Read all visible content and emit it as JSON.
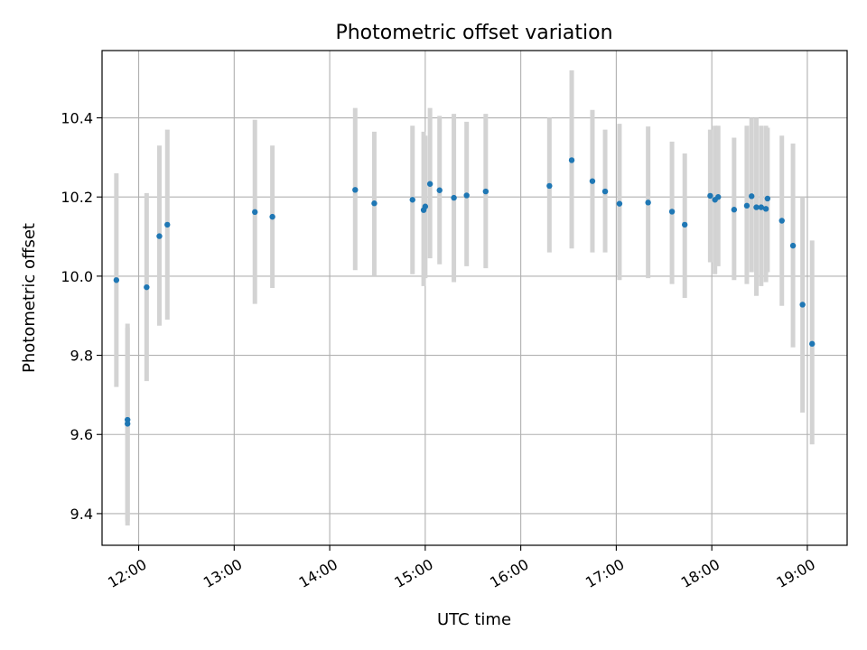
{
  "chart_data": {
    "type": "scatter",
    "title": "Photometric offset variation",
    "xlabel": "UTC time",
    "ylabel": "Photometric offset",
    "x_tick_labels": [
      "12:00",
      "13:00",
      "14:00",
      "15:00",
      "16:00",
      "17:00",
      "18:00",
      "19:00"
    ],
    "x_tick_values": [
      "12:00",
      "13:00",
      "14:00",
      "15:00",
      "16:00",
      "17:00",
      "18:00",
      "19:00"
    ],
    "y_tick_values": [
      9.4,
      9.6,
      9.8,
      10.0,
      10.2,
      10.4
    ],
    "y_tick_labels": [
      "9.4",
      "9.6",
      "9.8",
      "10.0",
      "10.2",
      "10.4"
    ],
    "xlim": [
      "11:37",
      "19:25"
    ],
    "ylim": [
      9.32,
      10.57
    ],
    "grid": true,
    "marker_color": "#1f77b4",
    "errorbar_color": "#d3d3d3",
    "points": [
      {
        "x": "11:46",
        "y": 9.99,
        "ylow": 9.72,
        "yhigh": 10.26
      },
      {
        "x": "11:53",
        "y": 9.637,
        "ylow": 9.37,
        "yhigh": 9.88
      },
      {
        "x": "11:53",
        "y": 9.627,
        "ylow": 9.38,
        "yhigh": 9.87
      },
      {
        "x": "12:05",
        "y": 9.972,
        "ylow": 9.735,
        "yhigh": 10.21
      },
      {
        "x": "12:13",
        "y": 10.101,
        "ylow": 9.875,
        "yhigh": 10.33
      },
      {
        "x": "12:18",
        "y": 10.13,
        "ylow": 9.89,
        "yhigh": 10.37
      },
      {
        "x": "13:13",
        "y": 10.162,
        "ylow": 9.93,
        "yhigh": 10.395
      },
      {
        "x": "13:24",
        "y": 10.15,
        "ylow": 9.97,
        "yhigh": 10.33
      },
      {
        "x": "14:16",
        "y": 10.218,
        "ylow": 10.015,
        "yhigh": 10.425
      },
      {
        "x": "14:28",
        "y": 10.184,
        "ylow": 10.0,
        "yhigh": 10.365
      },
      {
        "x": "14:52",
        "y": 10.193,
        "ylow": 10.005,
        "yhigh": 10.38
      },
      {
        "x": "14:59",
        "y": 10.167,
        "ylow": 9.975,
        "yhigh": 10.365
      },
      {
        "x": "15:00",
        "y": 10.176,
        "ylow": 9.995,
        "yhigh": 10.355
      },
      {
        "x": "15:03",
        "y": 10.233,
        "ylow": 10.045,
        "yhigh": 10.425
      },
      {
        "x": "15:09",
        "y": 10.217,
        "ylow": 10.03,
        "yhigh": 10.405
      },
      {
        "x": "15:18",
        "y": 10.198,
        "ylow": 9.985,
        "yhigh": 10.41
      },
      {
        "x": "15:26",
        "y": 10.204,
        "ylow": 10.025,
        "yhigh": 10.39
      },
      {
        "x": "15:38",
        "y": 10.214,
        "ylow": 10.02,
        "yhigh": 10.41
      },
      {
        "x": "16:18",
        "y": 10.228,
        "ylow": 10.06,
        "yhigh": 10.4
      },
      {
        "x": "16:32",
        "y": 10.293,
        "ylow": 10.07,
        "yhigh": 10.52
      },
      {
        "x": "16:45",
        "y": 10.24,
        "ylow": 10.06,
        "yhigh": 10.42
      },
      {
        "x": "16:53",
        "y": 10.214,
        "ylow": 10.06,
        "yhigh": 10.37
      },
      {
        "x": "17:02",
        "y": 10.183,
        "ylow": 9.99,
        "yhigh": 10.385
      },
      {
        "x": "17:20",
        "y": 10.186,
        "ylow": 9.995,
        "yhigh": 10.378
      },
      {
        "x": "17:35",
        "y": 10.163,
        "ylow": 9.98,
        "yhigh": 10.34
      },
      {
        "x": "17:43",
        "y": 10.13,
        "ylow": 9.945,
        "yhigh": 10.31
      },
      {
        "x": "17:59",
        "y": 10.203,
        "ylow": 10.035,
        "yhigh": 10.37
      },
      {
        "x": "18:02",
        "y": 10.193,
        "ylow": 10.005,
        "yhigh": 10.38
      },
      {
        "x": "18:04",
        "y": 10.2,
        "ylow": 10.025,
        "yhigh": 10.38
      },
      {
        "x": "18:14",
        "y": 10.168,
        "ylow": 9.99,
        "yhigh": 10.35
      },
      {
        "x": "18:22",
        "y": 10.178,
        "ylow": 9.98,
        "yhigh": 10.38
      },
      {
        "x": "18:25",
        "y": 10.202,
        "ylow": 10.01,
        "yhigh": 10.4
      },
      {
        "x": "18:28",
        "y": 10.174,
        "ylow": 9.95,
        "yhigh": 10.4
      },
      {
        "x": "18:31",
        "y": 10.174,
        "ylow": 9.975,
        "yhigh": 10.38
      },
      {
        "x": "18:34",
        "y": 10.17,
        "ylow": 9.985,
        "yhigh": 10.38
      },
      {
        "x": "18:35",
        "y": 10.196,
        "ylow": 10.01,
        "yhigh": 10.375
      },
      {
        "x": "18:44",
        "y": 10.14,
        "ylow": 9.925,
        "yhigh": 10.355
      },
      {
        "x": "18:51",
        "y": 10.077,
        "ylow": 9.82,
        "yhigh": 10.335
      },
      {
        "x": "18:57",
        "y": 9.928,
        "ylow": 9.655,
        "yhigh": 10.2
      },
      {
        "x": "19:03",
        "y": 9.829,
        "ylow": 9.575,
        "yhigh": 10.09
      }
    ]
  }
}
